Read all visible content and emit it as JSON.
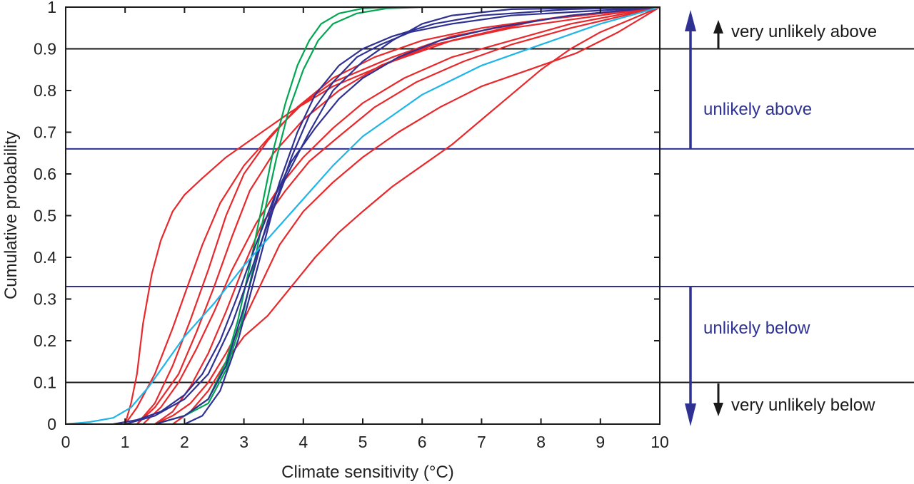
{
  "chart_data": {
    "type": "line",
    "xlabel": "Climate sensitivity (°C)",
    "ylabel": "Cumulative probability",
    "xlim": [
      0,
      10
    ],
    "ylim": [
      0,
      1
    ],
    "x_ticks": [
      "0",
      "1",
      "2",
      "3",
      "4",
      "5",
      "6",
      "7",
      "8",
      "9",
      "10"
    ],
    "y_ticks": [
      "0",
      "0.1",
      "0.2",
      "0.3",
      "0.4",
      "0.5",
      "0.6",
      "0.7",
      "0.8",
      "0.9",
      "1"
    ],
    "grid": false,
    "reference_lines": [
      {
        "y": 0.9,
        "color": "#1a1a1a"
      },
      {
        "y": 0.66,
        "color": "#2e3192"
      },
      {
        "y": 0.33,
        "color": "#2e3192"
      },
      {
        "y": 0.1,
        "color": "#1a1a1a"
      }
    ],
    "annotations": [
      {
        "text": "very unlikely above",
        "color": "#1a1a1a"
      },
      {
        "text": "unlikely above",
        "color": "#2e3192"
      },
      {
        "text": "unlikely below",
        "color": "#2e3192"
      },
      {
        "text": "very unlikely below",
        "color": "#1a1a1a"
      }
    ],
    "colors": {
      "red": "#e8282b",
      "green": "#00a651",
      "navy": "#2e3192",
      "cyan": "#1fb5e8",
      "axis": "#1a1a1a"
    },
    "series": [
      {
        "color": "#e8282b",
        "points": [
          [
            1.0,
            0
          ],
          [
            1.1,
            0.05
          ],
          [
            1.2,
            0.12
          ],
          [
            1.3,
            0.24
          ],
          [
            1.45,
            0.36
          ],
          [
            1.6,
            0.44
          ],
          [
            1.8,
            0.51
          ],
          [
            2.0,
            0.55
          ],
          [
            2.3,
            0.59
          ],
          [
            2.7,
            0.64
          ],
          [
            3.2,
            0.69
          ],
          [
            3.8,
            0.75
          ],
          [
            4.5,
            0.81
          ],
          [
            5.5,
            0.87
          ],
          [
            6.5,
            0.92
          ],
          [
            8.0,
            0.97
          ],
          [
            10,
            1
          ]
        ]
      },
      {
        "color": "#e8282b",
        "points": [
          [
            1.0,
            0
          ],
          [
            1.2,
            0.04
          ],
          [
            1.5,
            0.12
          ],
          [
            1.8,
            0.23
          ],
          [
            2.0,
            0.31
          ],
          [
            2.3,
            0.43
          ],
          [
            2.6,
            0.53
          ],
          [
            3.0,
            0.62
          ],
          [
            3.5,
            0.7
          ],
          [
            4.0,
            0.77
          ],
          [
            4.5,
            0.82
          ],
          [
            5.5,
            0.88
          ],
          [
            6.5,
            0.93
          ],
          [
            8.0,
            0.97
          ],
          [
            10,
            1
          ]
        ]
      },
      {
        "color": "#e8282b",
        "points": [
          [
            1.2,
            0
          ],
          [
            1.5,
            0.05
          ],
          [
            1.8,
            0.14
          ],
          [
            2.1,
            0.25
          ],
          [
            2.4,
            0.37
          ],
          [
            2.7,
            0.5
          ],
          [
            3.0,
            0.6
          ],
          [
            3.4,
            0.68
          ],
          [
            3.9,
            0.76
          ],
          [
            4.5,
            0.83
          ],
          [
            5.2,
            0.88
          ],
          [
            6.0,
            0.92
          ],
          [
            7.0,
            0.95
          ],
          [
            8.5,
            0.98
          ],
          [
            10,
            1
          ]
        ]
      },
      {
        "color": "#e8282b",
        "points": [
          [
            1.3,
            0
          ],
          [
            1.6,
            0.04
          ],
          [
            1.9,
            0.1
          ],
          [
            2.2,
            0.18
          ],
          [
            2.5,
            0.27
          ],
          [
            2.8,
            0.37
          ],
          [
            3.2,
            0.48
          ],
          [
            3.6,
            0.57
          ],
          [
            4.0,
            0.64
          ],
          [
            4.5,
            0.71
          ],
          [
            5.0,
            0.77
          ],
          [
            5.7,
            0.83
          ],
          [
            6.5,
            0.88
          ],
          [
            7.5,
            0.92
          ],
          [
            8.5,
            0.96
          ],
          [
            10,
            1
          ]
        ]
      },
      {
        "color": "#e8282b",
        "points": [
          [
            1.5,
            0
          ],
          [
            1.8,
            0.03
          ],
          [
            2.1,
            0.09
          ],
          [
            2.4,
            0.17
          ],
          [
            2.7,
            0.27
          ],
          [
            3.0,
            0.38
          ],
          [
            3.3,
            0.48
          ],
          [
            3.7,
            0.56
          ],
          [
            4.1,
            0.63
          ],
          [
            4.6,
            0.69
          ],
          [
            5.2,
            0.76
          ],
          [
            5.9,
            0.82
          ],
          [
            6.7,
            0.87
          ],
          [
            7.5,
            0.91
          ],
          [
            8.5,
            0.95
          ],
          [
            10,
            1
          ]
        ]
      },
      {
        "color": "#e8282b",
        "points": [
          [
            1.5,
            0
          ],
          [
            1.8,
            0.02
          ],
          [
            2.1,
            0.05
          ],
          [
            2.4,
            0.1
          ],
          [
            2.7,
            0.17
          ],
          [
            3.0,
            0.25
          ],
          [
            3.3,
            0.34
          ],
          [
            3.6,
            0.43
          ],
          [
            4.0,
            0.51
          ],
          [
            4.5,
            0.58
          ],
          [
            5.0,
            0.64
          ],
          [
            5.6,
            0.7
          ],
          [
            6.3,
            0.76
          ],
          [
            7.0,
            0.81
          ],
          [
            7.8,
            0.85
          ],
          [
            8.6,
            0.89
          ],
          [
            9.3,
            0.94
          ],
          [
            10,
            1
          ]
        ]
      },
      {
        "color": "#e8282b",
        "points": [
          [
            1.8,
            0
          ],
          [
            2.1,
            0.03
          ],
          [
            2.4,
            0.08
          ],
          [
            2.7,
            0.15
          ],
          [
            3.0,
            0.21
          ],
          [
            3.4,
            0.26
          ],
          [
            3.8,
            0.33
          ],
          [
            4.2,
            0.4
          ],
          [
            4.6,
            0.46
          ],
          [
            5.0,
            0.51
          ],
          [
            5.5,
            0.57
          ],
          [
            6.0,
            0.62
          ],
          [
            6.5,
            0.67
          ],
          [
            7.0,
            0.73
          ],
          [
            7.5,
            0.79
          ],
          [
            8.0,
            0.85
          ],
          [
            8.5,
            0.9
          ],
          [
            9.0,
            0.94
          ],
          [
            9.5,
            0.97
          ],
          [
            10,
            1
          ]
        ]
      },
      {
        "color": "#e8282b",
        "points": [
          [
            1.2,
            0
          ],
          [
            1.5,
            0.04
          ],
          [
            1.9,
            0.12
          ],
          [
            2.2,
            0.22
          ],
          [
            2.5,
            0.33
          ],
          [
            2.8,
            0.45
          ],
          [
            3.1,
            0.56
          ],
          [
            3.5,
            0.65
          ],
          [
            4.0,
            0.73
          ],
          [
            4.6,
            0.8
          ],
          [
            5.3,
            0.86
          ],
          [
            6.2,
            0.91
          ],
          [
            7.5,
            0.95
          ],
          [
            9.0,
            0.98
          ],
          [
            10,
            1
          ]
        ]
      },
      {
        "color": "#00a651",
        "points": [
          [
            1.5,
            0
          ],
          [
            2.0,
            0.02
          ],
          [
            2.4,
            0.06
          ],
          [
            2.7,
            0.15
          ],
          [
            2.9,
            0.25
          ],
          [
            3.1,
            0.38
          ],
          [
            3.3,
            0.52
          ],
          [
            3.5,
            0.66
          ],
          [
            3.7,
            0.77
          ],
          [
            3.9,
            0.86
          ],
          [
            4.1,
            0.92
          ],
          [
            4.3,
            0.96
          ],
          [
            4.6,
            0.985
          ],
          [
            5.0,
            0.997
          ],
          [
            5.5,
            1
          ],
          [
            10,
            1
          ]
        ]
      },
      {
        "color": "#00a651",
        "points": [
          [
            1.5,
            0
          ],
          [
            2.0,
            0.02
          ],
          [
            2.4,
            0.05
          ],
          [
            2.7,
            0.13
          ],
          [
            2.95,
            0.24
          ],
          [
            3.15,
            0.37
          ],
          [
            3.35,
            0.51
          ],
          [
            3.55,
            0.64
          ],
          [
            3.75,
            0.75
          ],
          [
            4.0,
            0.85
          ],
          [
            4.25,
            0.92
          ],
          [
            4.5,
            0.96
          ],
          [
            4.9,
            0.985
          ],
          [
            5.4,
            0.997
          ],
          [
            6.0,
            1
          ],
          [
            10,
            1
          ]
        ]
      },
      {
        "color": "#2e3192",
        "points": [
          [
            0.8,
            0
          ],
          [
            1.2,
            0.01
          ],
          [
            1.6,
            0.03
          ],
          [
            2.0,
            0.07
          ],
          [
            2.3,
            0.12
          ],
          [
            2.6,
            0.2
          ],
          [
            2.9,
            0.31
          ],
          [
            3.2,
            0.43
          ],
          [
            3.5,
            0.54
          ],
          [
            3.8,
            0.63
          ],
          [
            4.2,
            0.71
          ],
          [
            4.6,
            0.78
          ],
          [
            5.0,
            0.83
          ],
          [
            5.6,
            0.88
          ],
          [
            6.3,
            0.92
          ],
          [
            7.2,
            0.95
          ],
          [
            8.5,
            0.98
          ],
          [
            10,
            1
          ]
        ]
      },
      {
        "color": "#2e3192",
        "points": [
          [
            1.5,
            0
          ],
          [
            2.0,
            0.02
          ],
          [
            2.4,
            0.06
          ],
          [
            2.7,
            0.14
          ],
          [
            3.0,
            0.28
          ],
          [
            3.3,
            0.44
          ],
          [
            3.6,
            0.58
          ],
          [
            3.9,
            0.7
          ],
          [
            4.2,
            0.79
          ],
          [
            4.6,
            0.86
          ],
          [
            5.0,
            0.9
          ],
          [
            5.5,
            0.93
          ],
          [
            6.2,
            0.96
          ],
          [
            7.0,
            0.98
          ],
          [
            8.5,
            0.995
          ],
          [
            10,
            1
          ]
        ]
      },
      {
        "color": "#2e3192",
        "points": [
          [
            2.0,
            0
          ],
          [
            2.3,
            0.02
          ],
          [
            2.6,
            0.08
          ],
          [
            2.9,
            0.2
          ],
          [
            3.2,
            0.36
          ],
          [
            3.5,
            0.52
          ],
          [
            3.8,
            0.64
          ],
          [
            4.1,
            0.74
          ],
          [
            4.5,
            0.82
          ],
          [
            4.9,
            0.88
          ],
          [
            5.3,
            0.91
          ],
          [
            5.8,
            0.94
          ],
          [
            6.5,
            0.96
          ],
          [
            7.5,
            0.98
          ],
          [
            10,
            1
          ]
        ]
      },
      {
        "color": "#2e3192",
        "points": [
          [
            1.0,
            0
          ],
          [
            1.5,
            0.02
          ],
          [
            2.0,
            0.06
          ],
          [
            2.4,
            0.12
          ],
          [
            2.8,
            0.24
          ],
          [
            3.1,
            0.36
          ],
          [
            3.4,
            0.48
          ],
          [
            3.7,
            0.59
          ],
          [
            4.1,
            0.7
          ],
          [
            4.5,
            0.8
          ],
          [
            5.0,
            0.87
          ],
          [
            5.5,
            0.92
          ],
          [
            6.0,
            0.96
          ],
          [
            6.5,
            0.98
          ],
          [
            7.5,
            0.995
          ],
          [
            10,
            1
          ]
        ]
      },
      {
        "color": "#1fb5e8",
        "points": [
          [
            0,
            0
          ],
          [
            0.4,
            0.005
          ],
          [
            0.8,
            0.015
          ],
          [
            1.1,
            0.04
          ],
          [
            1.4,
            0.09
          ],
          [
            1.7,
            0.15
          ],
          [
            2.0,
            0.21
          ],
          [
            2.5,
            0.29
          ],
          [
            3.0,
            0.38
          ],
          [
            3.5,
            0.46
          ],
          [
            4.0,
            0.54
          ],
          [
            4.5,
            0.62
          ],
          [
            5.0,
            0.69
          ],
          [
            5.5,
            0.74
          ],
          [
            6.0,
            0.79
          ],
          [
            7.0,
            0.86
          ],
          [
            8.0,
            0.91
          ],
          [
            9.0,
            0.96
          ],
          [
            10,
            1
          ]
        ]
      }
    ]
  }
}
